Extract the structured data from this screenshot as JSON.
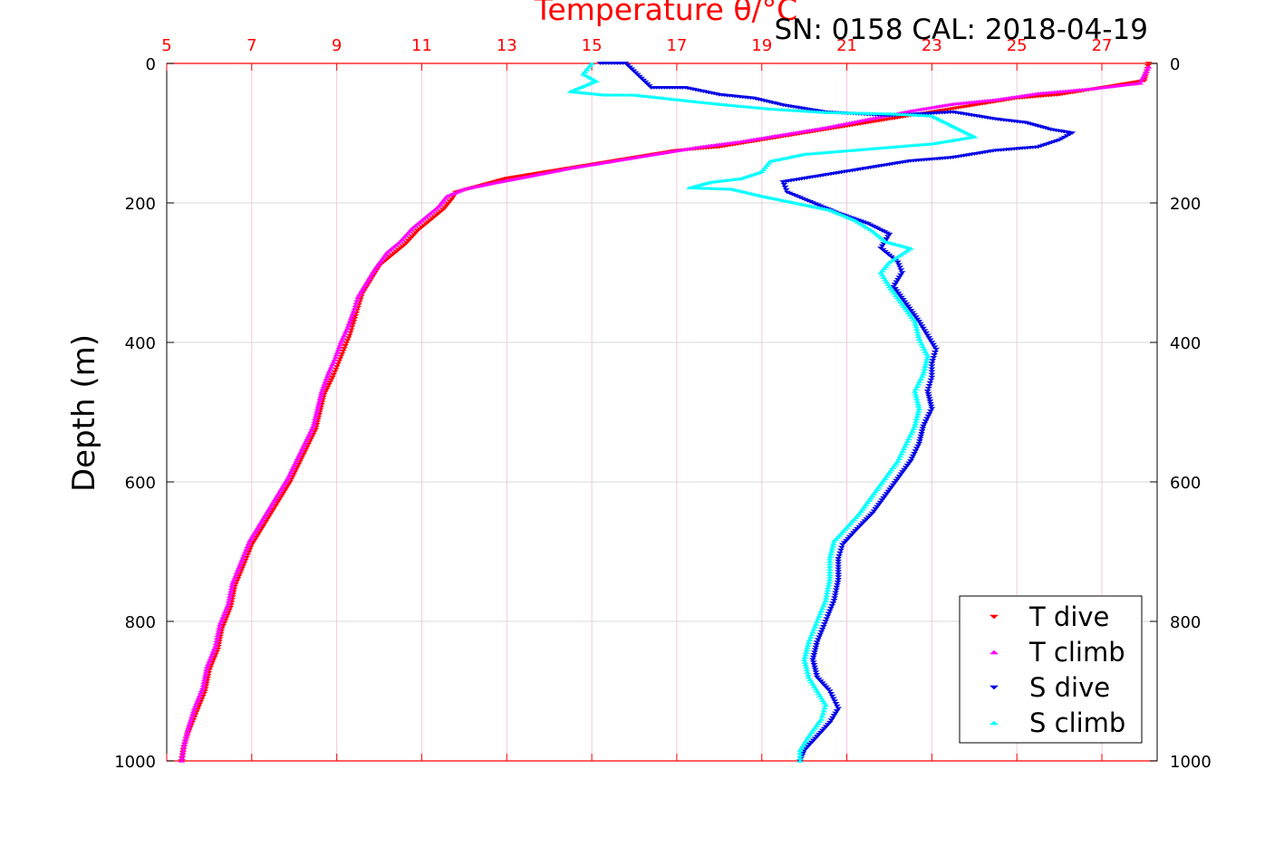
{
  "chart_data": {
    "type": "scatter",
    "title": "SN: 0158  CAL: 2018-04-19",
    "xlabel": "Temperature θ/°C",
    "ylabel": "Depth (m)",
    "xlim": [
      5,
      28.3
    ],
    "ylim": [
      0,
      1000
    ],
    "y_reversed": true,
    "x_axis_position": "top",
    "x_ticks": [
      5,
      7,
      9,
      11,
      13,
      15,
      17,
      19,
      21,
      23,
      25,
      27
    ],
    "y_ticks": [
      0,
      200,
      400,
      600,
      800,
      1000
    ],
    "grid": true,
    "legend_position": "bottom-right",
    "colors": {
      "axis_x": "#ff0000",
      "grid_x": "#f4c8e0",
      "grid_y": "#d8d8d8",
      "t_dive": "#ff0000",
      "t_climb": "#ff00ff",
      "s_dive": "#0000e6",
      "s_climb": "#00ffff"
    },
    "series": [
      {
        "name": "T dive",
        "marker": "triangle-down",
        "color": "#ff0000",
        "points": [
          [
            28.1,
            0
          ],
          [
            28.0,
            25
          ],
          [
            27.0,
            35
          ],
          [
            26.0,
            45
          ],
          [
            25.0,
            50
          ],
          [
            24.0,
            60
          ],
          [
            23.0,
            70
          ],
          [
            22.0,
            80
          ],
          [
            21.0,
            90
          ],
          [
            20.0,
            100
          ],
          [
            19.0,
            110
          ],
          [
            18.0,
            120
          ],
          [
            17.0,
            125
          ],
          [
            16.0,
            135
          ],
          [
            15.0,
            145
          ],
          [
            14.0,
            155
          ],
          [
            13.0,
            165
          ],
          [
            12.4,
            175
          ],
          [
            11.8,
            185
          ],
          [
            11.7,
            195
          ],
          [
            11.5,
            210
          ],
          [
            11.2,
            225
          ],
          [
            10.9,
            240
          ],
          [
            10.6,
            260
          ],
          [
            10.3,
            275
          ],
          [
            10.0,
            290
          ],
          [
            9.8,
            310
          ],
          [
            9.6,
            330
          ],
          [
            9.5,
            350
          ],
          [
            9.4,
            370
          ],
          [
            9.3,
            390
          ],
          [
            9.1,
            420
          ],
          [
            8.9,
            450
          ],
          [
            8.7,
            475
          ],
          [
            8.6,
            500
          ],
          [
            8.5,
            525
          ],
          [
            8.3,
            550
          ],
          [
            8.1,
            575
          ],
          [
            7.9,
            600
          ],
          [
            7.6,
            630
          ],
          [
            7.3,
            660
          ],
          [
            7.0,
            690
          ],
          [
            6.8,
            720
          ],
          [
            6.6,
            750
          ],
          [
            6.5,
            780
          ],
          [
            6.3,
            810
          ],
          [
            6.2,
            840
          ],
          [
            6.0,
            870
          ],
          [
            5.9,
            900
          ],
          [
            5.7,
            930
          ],
          [
            5.5,
            960
          ],
          [
            5.4,
            980
          ],
          [
            5.35,
            1000
          ]
        ]
      },
      {
        "name": "T climb",
        "marker": "triangle-up",
        "color": "#ff00ff",
        "points": [
          [
            28.1,
            5
          ],
          [
            27.9,
            28
          ],
          [
            26.8,
            36
          ],
          [
            25.5,
            43
          ],
          [
            24.5,
            52
          ],
          [
            23.5,
            58
          ],
          [
            22.5,
            68
          ],
          [
            21.5,
            80
          ],
          [
            20.5,
            92
          ],
          [
            19.5,
            102
          ],
          [
            18.5,
            112
          ],
          [
            17.5,
            120
          ],
          [
            16.5,
            130
          ],
          [
            15.5,
            140
          ],
          [
            14.5,
            150
          ],
          [
            13.5,
            162
          ],
          [
            12.8,
            170
          ],
          [
            12.0,
            180
          ],
          [
            11.6,
            190
          ],
          [
            11.4,
            205
          ],
          [
            11.1,
            220
          ],
          [
            10.8,
            235
          ],
          [
            10.5,
            255
          ],
          [
            10.2,
            270
          ],
          [
            9.9,
            295
          ],
          [
            9.7,
            315
          ],
          [
            9.5,
            335
          ],
          [
            9.4,
            355
          ],
          [
            9.25,
            380
          ],
          [
            9.1,
            400
          ],
          [
            8.95,
            425
          ],
          [
            8.8,
            445
          ],
          [
            8.65,
            470
          ],
          [
            8.55,
            495
          ],
          [
            8.45,
            520
          ],
          [
            8.25,
            545
          ],
          [
            8.05,
            570
          ],
          [
            7.85,
            595
          ],
          [
            7.55,
            625
          ],
          [
            7.25,
            655
          ],
          [
            6.95,
            685
          ],
          [
            6.75,
            715
          ],
          [
            6.55,
            745
          ],
          [
            6.45,
            775
          ],
          [
            6.25,
            805
          ],
          [
            6.15,
            835
          ],
          [
            5.95,
            865
          ],
          [
            5.85,
            895
          ],
          [
            5.65,
            925
          ],
          [
            5.5,
            955
          ],
          [
            5.4,
            980
          ],
          [
            5.35,
            1000
          ]
        ]
      },
      {
        "name": "S dive",
        "marker": "triangle-down",
        "color": "#0000e6",
        "points": [
          [
            15.2,
            0
          ],
          [
            15.8,
            0
          ],
          [
            16.4,
            35
          ],
          [
            17.2,
            35
          ],
          [
            18.0,
            45
          ],
          [
            18.8,
            50
          ],
          [
            19.5,
            60
          ],
          [
            20.5,
            70
          ],
          [
            22.0,
            75
          ],
          [
            23.5,
            70
          ],
          [
            24.5,
            80
          ],
          [
            25.2,
            85
          ],
          [
            25.8,
            95
          ],
          [
            26.3,
            100
          ],
          [
            26.0,
            110
          ],
          [
            25.5,
            120
          ],
          [
            24.5,
            125
          ],
          [
            23.5,
            135
          ],
          [
            22.5,
            140
          ],
          [
            21.5,
            150
          ],
          [
            20.5,
            160
          ],
          [
            19.5,
            170
          ],
          [
            19.6,
            185
          ],
          [
            20.2,
            200
          ],
          [
            20.8,
            215
          ],
          [
            21.5,
            230
          ],
          [
            22.0,
            245
          ],
          [
            21.8,
            265
          ],
          [
            22.2,
            285
          ],
          [
            22.3,
            300
          ],
          [
            22.1,
            320
          ],
          [
            22.4,
            345
          ],
          [
            22.7,
            370
          ],
          [
            22.9,
            390
          ],
          [
            23.1,
            410
          ],
          [
            23.0,
            430
          ],
          [
            23.0,
            450
          ],
          [
            22.9,
            470
          ],
          [
            23.0,
            495
          ],
          [
            22.8,
            520
          ],
          [
            22.7,
            545
          ],
          [
            22.5,
            570
          ],
          [
            22.2,
            595
          ],
          [
            21.9,
            620
          ],
          [
            21.6,
            645
          ],
          [
            21.2,
            670
          ],
          [
            20.9,
            690
          ],
          [
            20.8,
            710
          ],
          [
            20.8,
            740
          ],
          [
            20.7,
            770
          ],
          [
            20.5,
            800
          ],
          [
            20.3,
            830
          ],
          [
            20.2,
            855
          ],
          [
            20.3,
            880
          ],
          [
            20.6,
            900
          ],
          [
            20.8,
            925
          ],
          [
            20.6,
            945
          ],
          [
            20.3,
            965
          ],
          [
            20.0,
            985
          ],
          [
            19.9,
            1000
          ]
        ]
      },
      {
        "name": "S climb",
        "marker": "triangle-up",
        "color": "#00ffff",
        "points": [
          [
            15.0,
            0
          ],
          [
            14.8,
            15
          ],
          [
            15.1,
            25
          ],
          [
            14.5,
            40
          ],
          [
            15.3,
            45
          ],
          [
            16.0,
            45
          ],
          [
            17.5,
            55
          ],
          [
            18.3,
            60
          ],
          [
            19.2,
            65
          ],
          [
            20.5,
            70
          ],
          [
            22.0,
            72
          ],
          [
            23.0,
            75
          ],
          [
            23.5,
            90
          ],
          [
            24.0,
            105
          ],
          [
            23.0,
            115
          ],
          [
            22.0,
            120
          ],
          [
            21.0,
            125
          ],
          [
            20.0,
            130
          ],
          [
            19.2,
            140
          ],
          [
            19.0,
            155
          ],
          [
            18.5,
            165
          ],
          [
            17.8,
            170
          ],
          [
            17.3,
            178
          ],
          [
            18.3,
            180
          ],
          [
            19.0,
            190
          ],
          [
            19.8,
            200
          ],
          [
            20.6,
            210
          ],
          [
            21.2,
            225
          ],
          [
            21.6,
            240
          ],
          [
            21.9,
            255
          ],
          [
            22.5,
            265
          ],
          [
            22.0,
            285
          ],
          [
            21.8,
            300
          ],
          [
            22.0,
            320
          ],
          [
            22.3,
            345
          ],
          [
            22.6,
            370
          ],
          [
            22.7,
            395
          ],
          [
            22.9,
            420
          ],
          [
            22.8,
            445
          ],
          [
            22.6,
            470
          ],
          [
            22.7,
            495
          ],
          [
            22.6,
            520
          ],
          [
            22.4,
            545
          ],
          [
            22.2,
            570
          ],
          [
            21.9,
            595
          ],
          [
            21.6,
            620
          ],
          [
            21.3,
            645
          ],
          [
            21.0,
            665
          ],
          [
            20.7,
            685
          ],
          [
            20.6,
            710
          ],
          [
            20.6,
            740
          ],
          [
            20.5,
            770
          ],
          [
            20.3,
            800
          ],
          [
            20.1,
            830
          ],
          [
            20.0,
            855
          ],
          [
            20.1,
            880
          ],
          [
            20.3,
            900
          ],
          [
            20.5,
            920
          ],
          [
            20.4,
            940
          ],
          [
            20.1,
            965
          ],
          [
            19.9,
            985
          ],
          [
            19.9,
            1000
          ]
        ]
      }
    ]
  }
}
